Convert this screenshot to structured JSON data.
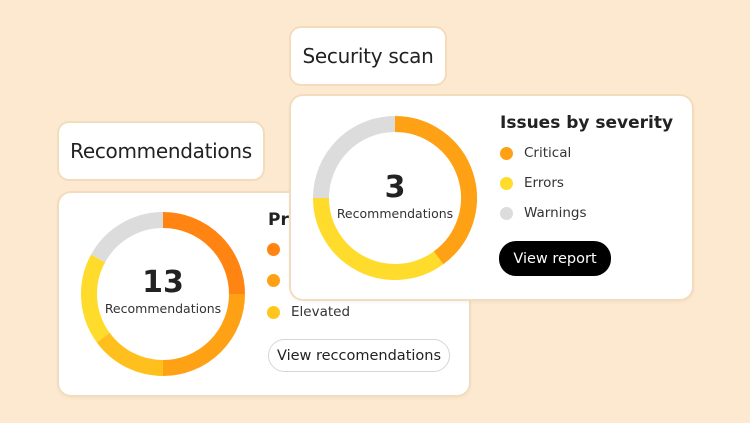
{
  "recommendations": {
    "title": "Recommendations",
    "count": "13",
    "count_label": "Recommendations",
    "heading": "Pri",
    "legend": [
      {
        "label": "",
        "color": "#FF8412"
      },
      {
        "label": "",
        "color": "#FFA114"
      },
      {
        "label": "Elevated",
        "color": "#FFC61E"
      }
    ],
    "segments_percent": [
      {
        "color": "#FF8412",
        "value": 25
      },
      {
        "color": "#FFA114",
        "value": 25
      },
      {
        "color": "#FFC01E",
        "value": 15
      },
      {
        "color": "#FFDB2C",
        "value": 18
      },
      {
        "color": "#DCDCDC",
        "value": 17
      }
    ],
    "button": "View reccomendations"
  },
  "security": {
    "title": "Security scan",
    "count": "3",
    "count_label": "Recommendations",
    "heading": "Issues by severity",
    "legend": [
      {
        "label": "Critical",
        "color": "#FFA114"
      },
      {
        "label": "Errors",
        "color": "#FFDB2C"
      },
      {
        "label": "Warnings",
        "color": "#DCDCDC"
      }
    ],
    "segments_percent": [
      {
        "color": "#FFA114",
        "value": 40
      },
      {
        "color": "#FFDB2C",
        "value": 35
      },
      {
        "color": "#DCDCDC",
        "value": 25
      }
    ],
    "button": "View report"
  }
}
